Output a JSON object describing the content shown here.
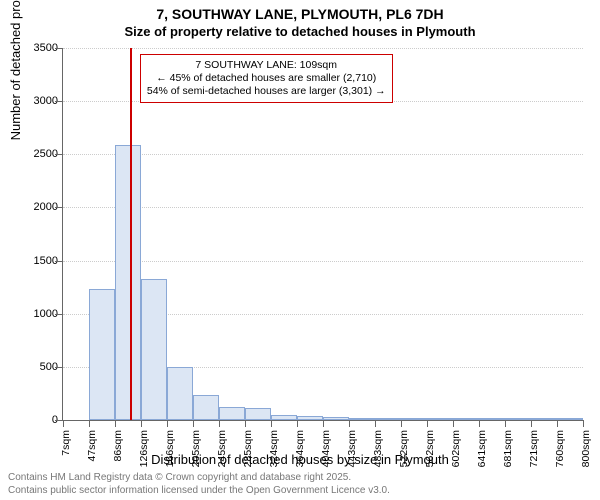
{
  "title_line1": "7, SOUTHWAY LANE, PLYMOUTH, PL6 7DH",
  "title_line2": "Size of property relative to detached houses in Plymouth",
  "y_axis_label": "Number of detached properties",
  "x_axis_label": "Distribution of detached houses by size in Plymouth",
  "footer_line1": "Contains HM Land Registry data © Crown copyright and database right 2025.",
  "footer_line2": "Contains public sector information licensed under the Open Government Licence v3.0.",
  "chart": {
    "type": "histogram",
    "background_color": "#ffffff",
    "grid_color": "#cccccc",
    "axis_color": "#666666",
    "bar_fill": "#dce6f4",
    "bar_border": "#8aa8d6",
    "ylim": [
      0,
      3500
    ],
    "ytick_step": 500,
    "y_ticks": [
      0,
      500,
      1000,
      1500,
      2000,
      2500,
      3000,
      3500
    ],
    "x_tick_labels": [
      "7sqm",
      "47sqm",
      "86sqm",
      "126sqm",
      "166sqm",
      "205sqm",
      "245sqm",
      "285sqm",
      "324sqm",
      "364sqm",
      "404sqm",
      "443sqm",
      "483sqm",
      "522sqm",
      "562sqm",
      "602sqm",
      "641sqm",
      "681sqm",
      "721sqm",
      "760sqm",
      "800sqm"
    ],
    "bar_values": [
      0,
      1230,
      2590,
      1330,
      500,
      240,
      120,
      110,
      50,
      40,
      30,
      20,
      15,
      10,
      8,
      6,
      4,
      3,
      2,
      1
    ],
    "marker": {
      "color": "#cc0000",
      "position_sqm": 109,
      "line1": "7 SOUTHWAY LANE: 109sqm",
      "line2": "← 45% of detached houses are smaller (2,710)",
      "line3": "54% of semi-detached houses are larger (3,301) →",
      "box_border": "#cc0000"
    },
    "font_family": "Arial, sans-serif",
    "title_fontsize": 14,
    "axis_label_fontsize": 13,
    "tick_fontsize": 11,
    "annotation_fontsize": 10.5,
    "footer_fontsize": 10,
    "footer_color": "#777777"
  }
}
